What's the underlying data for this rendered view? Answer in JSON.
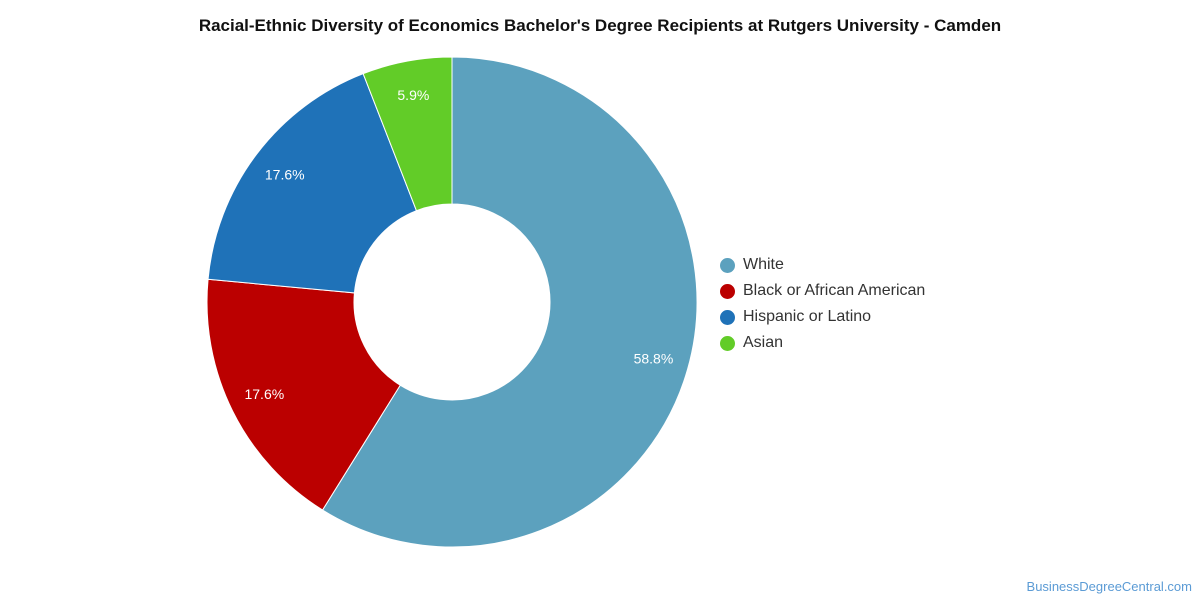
{
  "chart_data": {
    "type": "pie",
    "title": "Racial-Ethnic Diversity of Economics Bachelor's Degree Recipients at Rutgers University - Camden",
    "categories": [
      "White",
      "Black or African American",
      "Hispanic or Latino",
      "Asian"
    ],
    "values": [
      58.8,
      17.6,
      17.6,
      5.9
    ],
    "value_labels": [
      "58.8%",
      "17.6%",
      "17.6%",
      "5.9%"
    ],
    "colors": [
      "#5ca1be",
      "#bb0000",
      "#1f72b8",
      "#62cc28"
    ],
    "donut": true,
    "legend_position": "right"
  },
  "credit": "BusinessDegreeCentral.com"
}
